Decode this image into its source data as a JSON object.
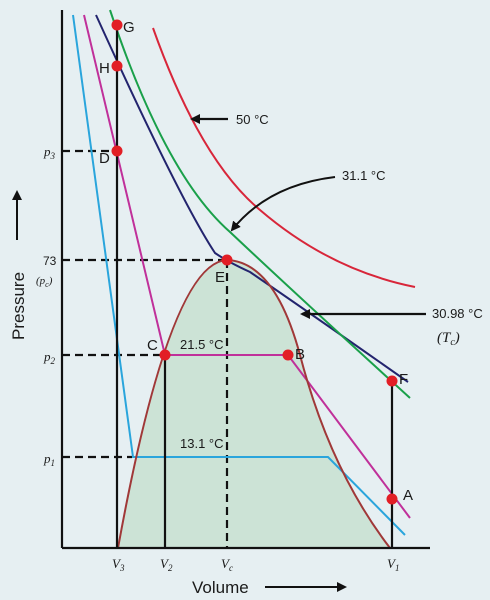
{
  "axes": {
    "y_title": "Pressure",
    "x_title": "Volume",
    "y_ticks": {
      "p3": "p",
      "p3_sub": "3",
      "p73": "73",
      "pc_open": "(p",
      "pc_sub": "c",
      "pc_close": ")",
      "p2": "p",
      "p2_sub": "2",
      "p1": "p",
      "p1_sub": "1"
    },
    "x_ticks": {
      "v3": "V",
      "v3_sub": "3",
      "v2": "V",
      "v2_sub": "2",
      "vc": "V",
      "vc_sub": "c",
      "v1": "V",
      "v1_sub": "1"
    }
  },
  "points": {
    "G": "G",
    "H": "H",
    "D": "D",
    "E": "E",
    "C": "C",
    "B": "B",
    "F": "F",
    "A": "A"
  },
  "temps": {
    "t50": "50 °C",
    "t311": "31.1 °C",
    "t3098": "30.98 °C",
    "tc_open": "(T",
    "tc_sub": "c",
    "tc_close": ")",
    "t215": "21.5 °C",
    "t131": "13.1 °C"
  },
  "colors": {
    "background": "#e6eff2",
    "dome_fill": "#cce3d6",
    "curve_50": "#d8263a",
    "curve_311": "#1aa04a",
    "curve_3098": "#23246e",
    "curve_215": "#c0309a",
    "curve_131": "#2aa5dc",
    "dome": "#a03838",
    "point": "#e21e25"
  }
}
